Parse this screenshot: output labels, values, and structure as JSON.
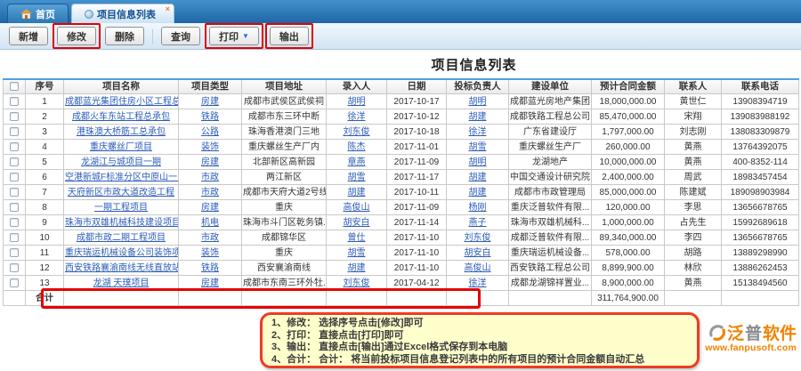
{
  "tab_bar": {
    "home_tab": "首页",
    "active_tab": "项目信息列表",
    "close_icon": "×"
  },
  "toolbar": {
    "new": "新增",
    "edit": "修改",
    "delete": "删除",
    "search": "查询",
    "print": "打印",
    "print_arrow": "▼",
    "export": "输出"
  },
  "page_title": "项目信息列表",
  "table": {
    "headers": [
      "序号",
      "项目名称",
      "项目类型",
      "项目地址",
      "录入人",
      "日期",
      "投标负责人",
      "建设单位",
      "预计合同金额",
      "联系人",
      "联系电话"
    ],
    "rows": [
      {
        "seq": "1",
        "name": "成都蓝光集团住房小区工程总...",
        "type": "房建",
        "address": "成都市武侯区武侯祠",
        "recorder": "胡明",
        "date": "2017-10-17",
        "bidder": "胡明",
        "unit": "成都蓝光房地产集团",
        "amount": "18,000,000.00",
        "contact": "黄世仁",
        "phone": "13908394719"
      },
      {
        "seq": "2",
        "name": "成都火车东站工程总承包",
        "type": "铁路",
        "address": "成都市东三环中断",
        "recorder": "徐洋",
        "date": "2017-10-12",
        "bidder": "胡建",
        "unit": "成都铁路工程总公司",
        "amount": "85,470,000.00",
        "contact": "宋翔",
        "phone": "139083988192"
      },
      {
        "seq": "3",
        "name": "港珠澳大桥筋工总承包",
        "type": "公路",
        "address": "珠海香港澳门三地",
        "recorder": "刘东俊",
        "date": "2017-10-18",
        "bidder": "徐洋",
        "unit": "广东省建设厅",
        "amount": "1,797,000.00",
        "contact": "刘志刚",
        "phone": "138083309879"
      },
      {
        "seq": "4",
        "name": "重庆螺丝厂项目",
        "type": "装饰",
        "address": "重庆螺丝生产厂内",
        "recorder": "陈杰",
        "date": "2017-11-01",
        "bidder": "胡雪",
        "unit": "重庆螺丝生产厂",
        "amount": "260,000.00",
        "contact": "黄燕",
        "phone": "13764392075"
      },
      {
        "seq": "5",
        "name": "龙湖江与城项目一期",
        "type": "房建",
        "address": "北部新区高新园",
        "recorder": "章燕",
        "date": "2017-11-09",
        "bidder": "胡明",
        "unit": "龙湖地产",
        "amount": "10,000,000.00",
        "contact": "黄燕",
        "phone": "400-8352-114"
      },
      {
        "seq": "6",
        "name": "空港新城F标准分区中原山一...",
        "type": "市政",
        "address": "两江新区",
        "recorder": "胡雪",
        "date": "2017-11-17",
        "bidder": "胡建",
        "unit": "中国交通设计研究院",
        "amount": "2,400,000.00",
        "contact": "周武",
        "phone": "18983457454"
      },
      {
        "seq": "7",
        "name": "天府新区市政大道改造工程",
        "type": "市政",
        "address": "成都市天府大道2号线",
        "recorder": "胡建",
        "date": "2017-10-11",
        "bidder": "胡建",
        "unit": "成都市市政管理局",
        "amount": "85,000,000.00",
        "contact": "陈建斌",
        "phone": "189098903984"
      },
      {
        "seq": "8",
        "name": "一期工程项目",
        "type": "房建",
        "address": "重庆",
        "recorder": "高俊山",
        "date": "2017-11-09",
        "bidder": "杨刚",
        "unit": "重庆泛普软件有限...",
        "amount": "120,000.00",
        "contact": "李思",
        "phone": "13656678765"
      },
      {
        "seq": "9",
        "name": "珠海市双雄机械科技建设项目",
        "type": "机电",
        "address": "珠海市斗门区乾务镇...",
        "recorder": "胡安白",
        "date": "2017-11-14",
        "bidder": "燕子",
        "unit": "珠海市双雄机械科...",
        "amount": "1,000,000.00",
        "contact": "占先生",
        "phone": "15992689618"
      },
      {
        "seq": "10",
        "name": "成都市政二期工程项目",
        "type": "市政",
        "address": "成都锦华区",
        "recorder": "曾仕",
        "date": "2017-11-10",
        "bidder": "刘东俊",
        "unit": "成都泛普软件有限...",
        "amount": "89,340,000.00",
        "contact": "李四",
        "phone": "13656678765"
      },
      {
        "seq": "11",
        "name": "重庆瑞运机械设备公司装饰项目",
        "type": "装饰",
        "address": "重庆",
        "recorder": "胡雪",
        "date": "2017-11-10",
        "bidder": "胡安白",
        "unit": "重庆瑞运机械设备...",
        "amount": "578,000.00",
        "contact": "胡路",
        "phone": "13889298990"
      },
      {
        "seq": "12",
        "name": "西安铁路襄渝南线无线直放站...",
        "type": "铁路",
        "address": "西安襄渝南线",
        "recorder": "胡建",
        "date": "2017-11-10",
        "bidder": "高俊山",
        "unit": "西安铁路工程总公司",
        "amount": "8,899,900.00",
        "contact": "林欣",
        "phone": "13886262453"
      },
      {
        "seq": "13",
        "name": "龙湖 天璞项目",
        "type": "房建",
        "address": "成都市东南三环外牡...",
        "recorder": "刘东俊",
        "date": "2017-04-12",
        "bidder": "徐洋",
        "unit": "成都龙湖锦祥置业...",
        "amount": "8,900,000.00",
        "contact": "黄燕",
        "phone": "15138494560"
      }
    ],
    "total_label": "合计",
    "total_amount": "311,764,900.00"
  },
  "note": {
    "lines": [
      "1、修改： 选择序号点击[修改]即可",
      "2、打印： 直接点击[打印]即可",
      "3、输出： 直接点击[输出]通过Excel格式保存到本电脑",
      "4、合计： 合计： 将当前投标项目信息登记列表中的所有项目的预计合同金额自动汇总"
    ]
  },
  "footer": {
    "logo_part1": "泛",
    "logo_part2": "普",
    "logo_part3": "软件",
    "url": "www.fanpusoft.com"
  },
  "colors": {
    "accent_blue": "#2272b8",
    "link_blue": "#2b5cb8",
    "annotation_red": "#e50000",
    "note_bg": "#ffffcc",
    "logo_orange": "#f08300"
  }
}
